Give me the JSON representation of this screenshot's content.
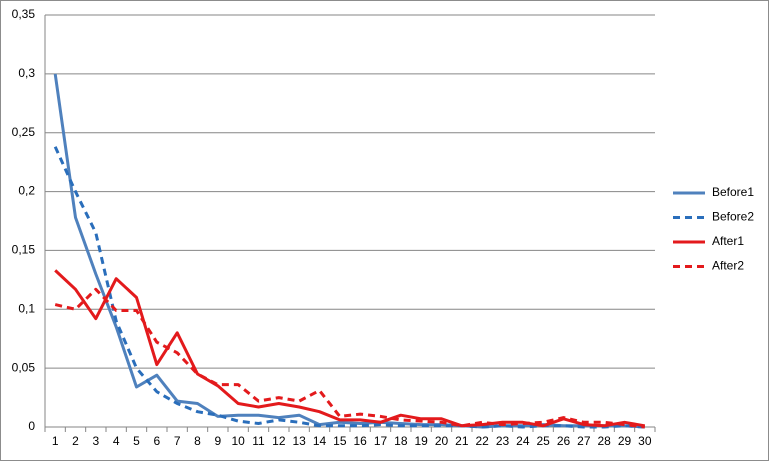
{
  "chart_data": {
    "type": "line",
    "categories": [
      "1",
      "2",
      "3",
      "4",
      "5",
      "6",
      "7",
      "8",
      "9",
      "10",
      "11",
      "12",
      "13",
      "14",
      "15",
      "16",
      "17",
      "18",
      "19",
      "20",
      "21",
      "22",
      "23",
      "24",
      "25",
      "26",
      "27",
      "28",
      "29",
      "30"
    ],
    "series": [
      {
        "name": "Before1",
        "color": "#4f81bd",
        "style": "solid",
        "values": [
          0.3,
          0.178,
          0.13,
          0.085,
          0.034,
          0.044,
          0.022,
          0.02,
          0.009,
          0.01,
          0.01,
          0.008,
          0.01,
          0.002,
          0.004,
          0.003,
          0.004,
          0.003,
          0.002,
          0.002,
          0.001,
          0,
          0.001,
          0.001,
          0.002,
          0.001,
          0.001,
          0.001,
          0.001,
          0
        ]
      },
      {
        "name": "Before2",
        "color": "#2a6ebb",
        "style": "dashed",
        "values": [
          0.238,
          0.2,
          0.165,
          0.09,
          0.05,
          0.03,
          0.02,
          0.013,
          0.01,
          0.005,
          0.003,
          0.006,
          0.004,
          0.001,
          0.001,
          0.001,
          0.002,
          0.001,
          0.001,
          0.001,
          0.001,
          0,
          0.001,
          0,
          0.001,
          0.001,
          0,
          0,
          0.001,
          0
        ]
      },
      {
        "name": "After1",
        "color": "#e31a1c",
        "style": "solid",
        "values": [
          0.133,
          0.117,
          0.092,
          0.126,
          0.11,
          0.053,
          0.08,
          0.045,
          0.035,
          0.02,
          0.017,
          0.02,
          0.017,
          0.013,
          0.006,
          0.006,
          0.004,
          0.01,
          0.007,
          0.007,
          0.001,
          0.002,
          0.004,
          0.004,
          0.001,
          0.007,
          0.002,
          0.001,
          0.004,
          0.001
        ]
      },
      {
        "name": "After2",
        "color": "#e31a1c",
        "style": "dashed",
        "values": [
          0.104,
          0.1,
          0.117,
          0.099,
          0.099,
          0.072,
          0.063,
          0.045,
          0.036,
          0.036,
          0.022,
          0.025,
          0.022,
          0.031,
          0.009,
          0.011,
          0.009,
          0.006,
          0.005,
          0.004,
          0.001,
          0.004,
          0.002,
          0.003,
          0.004,
          0.008,
          0.004,
          0.004,
          0.002,
          0
        ]
      }
    ],
    "ylim": [
      0,
      0.35
    ],
    "yticks": [
      0,
      {
        "value": 0.05,
        "label": "0,05"
      },
      {
        "value": 0.1,
        "label": "0,1"
      },
      {
        "value": 0.15,
        "label": "0,15"
      },
      {
        "value": 0.2,
        "label": "0,2"
      },
      {
        "value": 0.25,
        "label": "0,25"
      },
      {
        "value": 0.3,
        "label": "0,3"
      },
      {
        "value": 0.35,
        "label": "0,35"
      }
    ],
    "grid": true,
    "legend": "right"
  }
}
